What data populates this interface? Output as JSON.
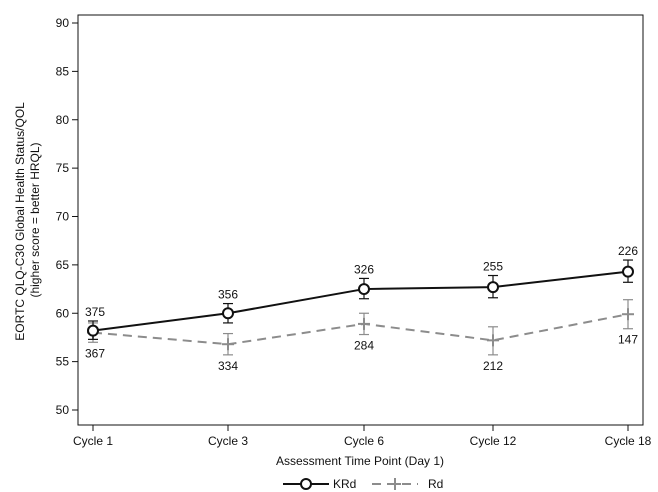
{
  "chart_data": {
    "type": "line",
    "title": "",
    "xlabel": "Assessment Time Point (Day 1)",
    "ylabel_lines": [
      "EORTC QLQ-C30 Global Health Status/QOL",
      "(higher score = better HRQL)"
    ],
    "categories": [
      "Cycle 1",
      "Cycle 3",
      "Cycle 6",
      "Cycle 12",
      "Cycle 18"
    ],
    "ylim": [
      50,
      90
    ],
    "yticks": [
      50,
      55,
      60,
      65,
      70,
      75,
      80,
      85,
      90
    ],
    "grid": false,
    "legend_position": "bottom-center",
    "series": [
      {
        "name": "KRd",
        "color": "#111111",
        "line_style": "solid",
        "marker": "circle",
        "values": [
          58.2,
          60.0,
          62.5,
          62.7,
          64.3
        ],
        "ci_low": [
          57.3,
          59.0,
          61.5,
          61.6,
          63.2
        ],
        "ci_high": [
          59.2,
          61.0,
          63.6,
          63.9,
          65.5
        ],
        "n": [
          "375",
          "356",
          "326",
          "255",
          "226"
        ],
        "label_side": "above"
      },
      {
        "name": "Rd",
        "color": "#8c8c8c",
        "line_style": "dashed",
        "marker": "plus",
        "values": [
          58.0,
          56.8,
          58.9,
          57.2,
          59.9
        ],
        "ci_low": [
          57.0,
          55.7,
          57.8,
          55.7,
          58.4
        ],
        "ci_high": [
          59.0,
          57.9,
          60.0,
          58.6,
          61.4
        ],
        "n": [
          "367",
          "334",
          "284",
          "212",
          "147"
        ],
        "label_side": "below"
      }
    ]
  }
}
